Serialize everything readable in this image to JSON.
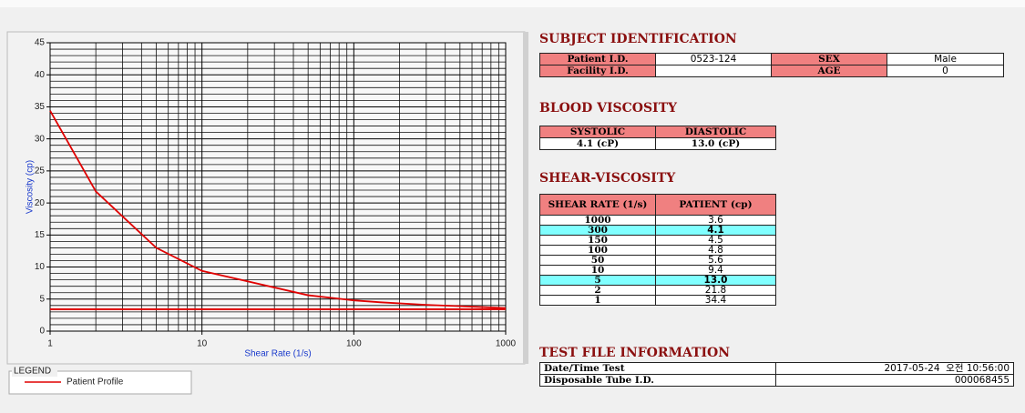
{
  "chart_data": {
    "type": "line",
    "xlabel": "Shear Rate (1/s)",
    "ylabel": "Viscosity (cp)",
    "x": [
      1,
      2,
      5,
      10,
      50,
      100,
      150,
      300,
      1000
    ],
    "series": [
      {
        "name": "Patient Profile",
        "color": "#e00000",
        "values": [
          34.4,
          21.8,
          13.0,
          9.4,
          5.6,
          4.8,
          4.5,
          4.1,
          3.6
        ]
      }
    ],
    "xlim": [
      1,
      1000
    ],
    "ylim": [
      0,
      45
    ],
    "xscale": "log",
    "xticks": [
      1,
      10,
      100,
      1000
    ],
    "yticks": [
      0,
      5,
      10,
      15,
      20,
      25,
      30,
      35,
      40,
      45
    ],
    "xminor": [
      2,
      3,
      4,
      5,
      6,
      7,
      8,
      9,
      20,
      30,
      40,
      50,
      60,
      70,
      80,
      90,
      200,
      300,
      400,
      500,
      600,
      700,
      800,
      900
    ],
    "yminor": [
      1,
      2,
      3,
      4,
      6,
      7,
      8,
      9,
      11,
      12,
      13,
      14,
      16,
      17,
      18,
      19,
      21,
      22,
      23,
      24,
      26,
      27,
      28,
      29,
      31,
      32,
      33,
      34,
      36,
      37,
      38,
      39,
      41,
      42,
      43,
      44
    ],
    "grid": true,
    "reference_line": 3.4,
    "legend_title": "LEGEND"
  },
  "subject": {
    "title": "SUBJECT IDENTIFICATION",
    "rows": [
      [
        "Patient I.D.",
        "0523-124",
        "SEX",
        "Male"
      ],
      [
        "Facility I.D.",
        null,
        "AGE",
        "0"
      ]
    ]
  },
  "blood": {
    "title": "BLOOD VISCOSITY",
    "header": [
      "SYSTOLIC",
      "DIASTOLIC"
    ],
    "row": [
      "4.1 (cP)",
      "13.0 (cP)"
    ]
  },
  "shear": {
    "title": "SHEAR-VISCOSITY",
    "header": [
      "SHEAR RATE (1/s)",
      "PATIENT (cp)"
    ],
    "rows": [
      [
        "1000",
        "3.6"
      ],
      [
        "300",
        "4.1"
      ],
      [
        "150",
        "4.5"
      ],
      [
        "100",
        "4.8"
      ],
      [
        "50",
        "5.6"
      ],
      [
        "10",
        "9.4"
      ],
      [
        "5",
        "13.0"
      ],
      [
        "2",
        "21.8"
      ],
      [
        "1",
        "34.4"
      ]
    ],
    "highlight_rows": [
      1,
      6
    ],
    "highlight_color": "#80ffff"
  },
  "test_file": {
    "title": "TEST FILE INFORMATION",
    "rows": [
      [
        "Date/Time Test",
        "2017-05-24  오전 10:56:00"
      ],
      [
        "Disposable Tube I.D.",
        "000068455"
      ]
    ]
  }
}
